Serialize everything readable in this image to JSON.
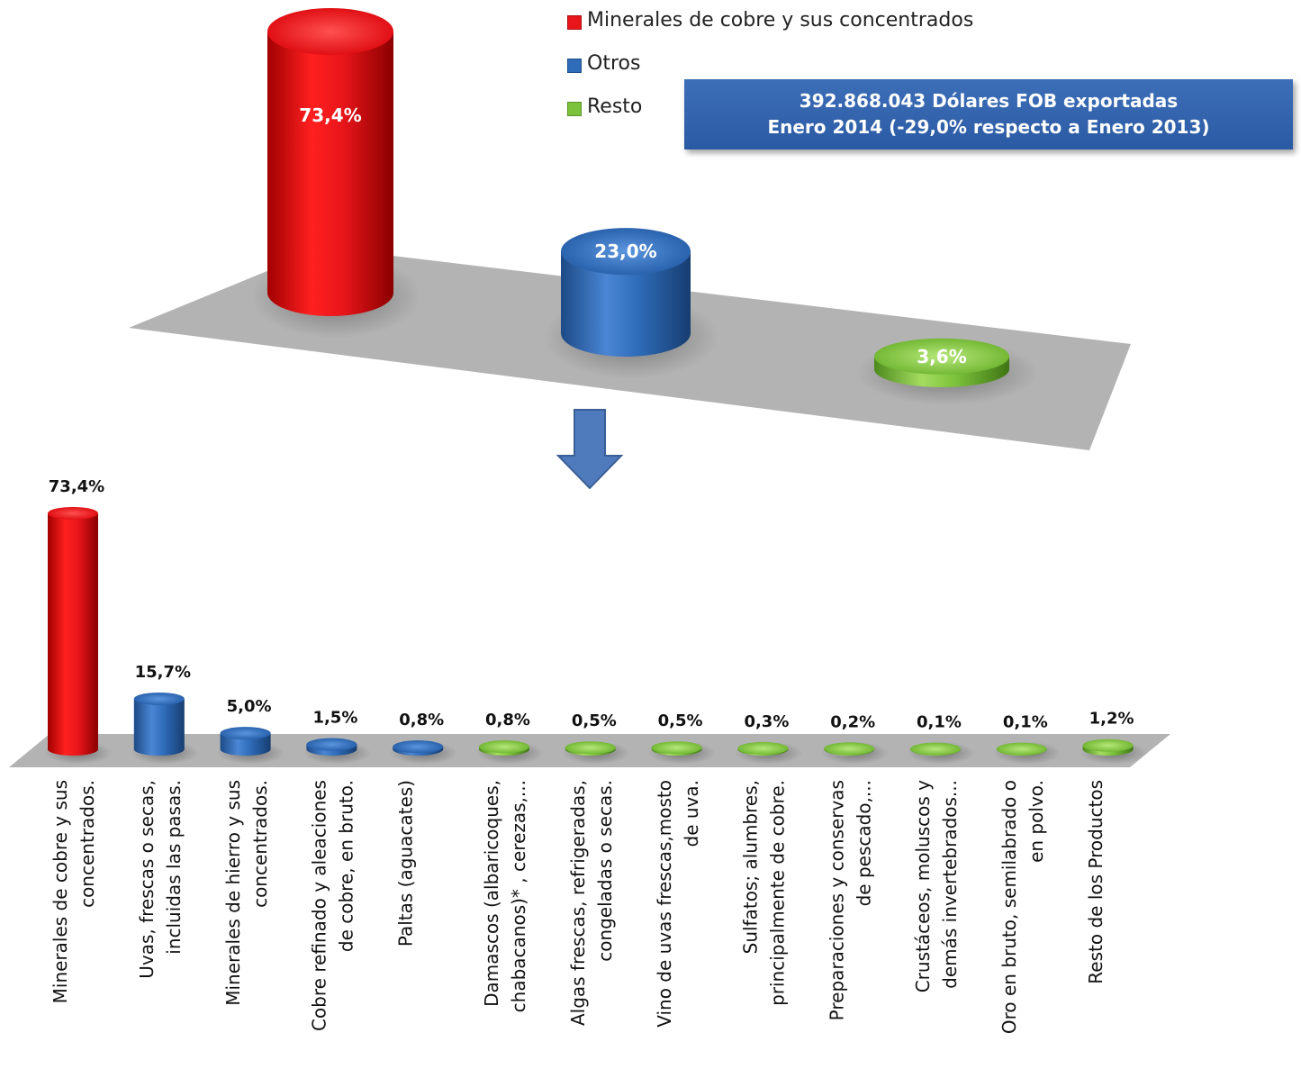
{
  "colors": {
    "red": "#e8151a",
    "blue": "#2e6bb8",
    "green": "#7cc23b",
    "floor": "#b3b3b3",
    "arrow": "#4f7bbd"
  },
  "info_box": {
    "line1": "392.868.043 Dólares FOB exportadas",
    "line2": "Enero 2014 (-29,0% respecto a Enero 2013)"
  },
  "chart_data": [
    {
      "type": "bar",
      "title": "",
      "legend": [
        {
          "name": "Minerales de cobre y sus concentrados",
          "color": "red"
        },
        {
          "name": "Otros",
          "color": "blue"
        },
        {
          "name": "Resto",
          "color": "green"
        }
      ],
      "legend_position": "top-right",
      "categories": [
        "Minerales de cobre y sus concentrados",
        "Otros",
        "Resto"
      ],
      "values": [
        73.4,
        23.0,
        3.6
      ],
      "value_labels": [
        "73,4%",
        "23,0%",
        "3,6%"
      ],
      "bar_colors": [
        "red",
        "blue",
        "green"
      ],
      "style": "3d-cylinder"
    },
    {
      "type": "bar",
      "title": "",
      "categories": [
        "Minerales de cobre y sus concentrados.",
        "Uvas, frescas o secas, incluidas las pasas.",
        "Minerales de hierro y sus concentrados.",
        "Cobre refinado y aleaciones de cobre, en bruto.",
        "Paltas (aguacates)",
        "Damascos (albaricoques, chabacanos)* , cerezas,...",
        "Algas frescas, refrigeradas, congeladas o secas.",
        "Vino de uvas frescas,mosto de uva.",
        "Sulfatos; alumbres, principalmente de cobre.",
        "Preparaciones y conservas de pescado,...",
        "Crustáceos, moluscos y demás invertebrados...",
        "Oro en bruto, semilabrado o en polvo.",
        "Resto de los Productos"
      ],
      "category_lines": [
        [
          "Minerales de cobre y sus",
          "concentrados."
        ],
        [
          "Uvas, frescas o secas,",
          "incluidas las pasas."
        ],
        [
          "Minerales de hierro y sus",
          "concentrados."
        ],
        [
          "Cobre refinado y aleaciones",
          "de cobre, en bruto."
        ],
        [
          "Paltas (aguacates)"
        ],
        [
          "Damascos (albaricoques,",
          "chabacanos)* , cerezas,..."
        ],
        [
          "Algas frescas, refrigeradas,",
          "congeladas o secas."
        ],
        [
          "Vino de uvas frescas,mosto",
          "de uva."
        ],
        [
          "Sulfatos; alumbres,",
          "principalmente de cobre."
        ],
        [
          "Preparaciones y conservas",
          "de pescado,..."
        ],
        [
          "Crustáceos, moluscos y",
          "demás invertebrados..."
        ],
        [
          "Oro en bruto, semilabrado o",
          "en polvo."
        ],
        [
          "Resto de los Productos"
        ]
      ],
      "values": [
        73.4,
        15.7,
        5.0,
        1.5,
        0.8,
        0.8,
        0.5,
        0.5,
        0.3,
        0.2,
        0.1,
        0.1,
        1.2
      ],
      "value_labels": [
        "73,4%",
        "15,7%",
        "5,0%",
        "1,5%",
        "0,8%",
        "0,8%",
        "0,5%",
        "0,5%",
        "0,3%",
        "0,2%",
        "0,1%",
        "0,1%",
        "1,2%"
      ],
      "bar_colors": [
        "red",
        "blue",
        "blue",
        "blue",
        "blue",
        "green",
        "green",
        "green",
        "green",
        "green",
        "green",
        "green",
        "green"
      ],
      "style": "3d-cylinder"
    }
  ]
}
